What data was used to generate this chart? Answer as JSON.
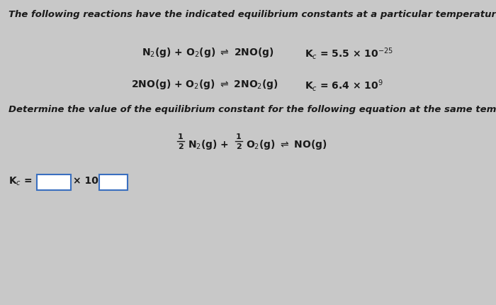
{
  "background_color": "#c8c8c8",
  "title_text": "The following reactions have the indicated equilibrium constants at a particular temperature:",
  "text_color": "#1a1a1a",
  "font_size_title": 9.5,
  "font_size_rxn": 10.0,
  "font_size_kc_bottom": 10.0,
  "box_edge_color": "#3a6fbf",
  "box_face_color": "#ffffff"
}
